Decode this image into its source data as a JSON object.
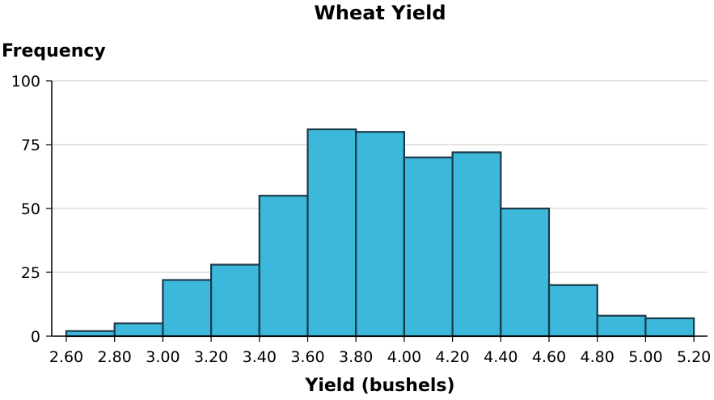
{
  "chart_data": {
    "type": "bar",
    "title": "Wheat Yield",
    "xlabel": "Yield (bushels)",
    "ylabel": "Frequency",
    "x_ticks": [
      "2.60",
      "2.80",
      "3.00",
      "3.20",
      "3.40",
      "3.60",
      "3.80",
      "4.00",
      "4.20",
      "4.40",
      "4.60",
      "4.80",
      "5.00",
      "5.20"
    ],
    "y_ticks": [
      "0",
      "25",
      "50",
      "75",
      "100"
    ],
    "bins": [
      [
        2.6,
        2.8
      ],
      [
        2.8,
        3.0
      ],
      [
        3.0,
        3.2
      ],
      [
        3.2,
        3.4
      ],
      [
        3.4,
        3.6
      ],
      [
        3.6,
        3.8
      ],
      [
        3.8,
        4.0
      ],
      [
        4.0,
        4.2
      ],
      [
        4.2,
        4.4
      ],
      [
        4.4,
        4.6
      ],
      [
        4.6,
        4.8
      ],
      [
        4.8,
        5.0
      ],
      [
        5.0,
        5.2
      ]
    ],
    "values": [
      2,
      5,
      22,
      28,
      55,
      81,
      80,
      70,
      72,
      50,
      20,
      8,
      7
    ],
    "xlim": [
      2.6,
      5.2
    ],
    "ylim": [
      0,
      100
    ],
    "grid": true,
    "bar_color": "#3cb8da",
    "bar_edge_color": "#1a3a4a",
    "grid_color": "#c8c8c8"
  }
}
